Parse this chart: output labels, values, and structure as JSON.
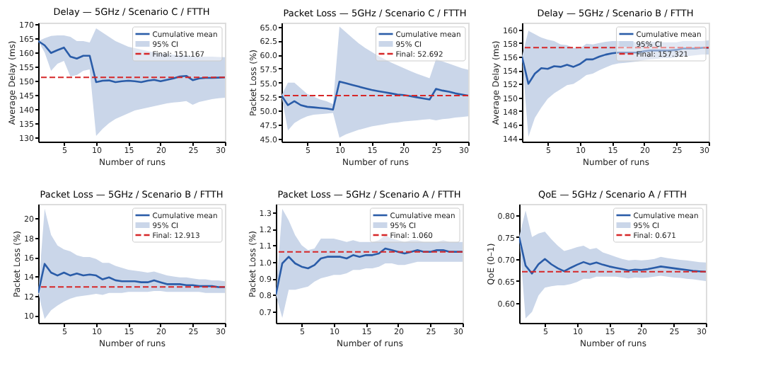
{
  "chart_data": [
    {
      "type": "line",
      "title": "Delay — 5GHz / Scenario C / FTTH",
      "xlabel": "Number of runs",
      "ylabel": "Average Delay (ms)",
      "x": [
        1,
        2,
        3,
        4,
        5,
        6,
        7,
        8,
        9,
        10,
        11,
        12,
        13,
        14,
        15,
        16,
        17,
        18,
        19,
        20,
        21,
        22,
        23,
        24,
        25,
        26,
        27,
        28,
        29,
        30
      ],
      "xlim": [
        1,
        30
      ],
      "xticks": [
        5,
        10,
        15,
        20,
        25,
        30
      ],
      "ylim": [
        128.5,
        170.5
      ],
      "yticks": [
        130,
        135,
        140,
        145,
        150,
        155,
        160,
        165,
        170
      ],
      "grid": false,
      "legend": "top right",
      "annotations": [
        "95% CI"
      ],
      "series": [
        {
          "name": "Cumulative mean",
          "color": "#2a5ca8",
          "line_style": "solid",
          "values": [
            164,
            162.5,
            159.8,
            160.8,
            161.7,
            158.5,
            157.8,
            158.8,
            158.8,
            149.5,
            150,
            150.1,
            149.5,
            149.8,
            150,
            149.8,
            149.5,
            150,
            150.3,
            149.8,
            150.3,
            150.8,
            151.5,
            151.7,
            150.2,
            150.8,
            151,
            151,
            151.1,
            151.2
          ],
          "lower": [
            164,
            160,
            153.5,
            156,
            157,
            151.5,
            152,
            153.5,
            154,
            130.5,
            133,
            135,
            136.5,
            137.5,
            138.5,
            139.5,
            140,
            140.5,
            141,
            141.5,
            142,
            142.3,
            142.5,
            142.8,
            141.5,
            142.5,
            143,
            143.5,
            143.8,
            144
          ],
          "upper": [
            164,
            165,
            165.8,
            166,
            166,
            165.5,
            164,
            164,
            163.5,
            168.5,
            167,
            165.5,
            164,
            163,
            162,
            161.5,
            161,
            160.5,
            160,
            159.5,
            159.5,
            159.2,
            159,
            159,
            158.5,
            158.5,
            158.5,
            158.5,
            158.4,
            158.3
          ]
        }
      ],
      "ref_lines": [
        {
          "axis": "y",
          "value": 151.167,
          "label": "Final: 151.167",
          "color": "#d62728",
          "line_style": "dashed"
        }
      ]
    },
    {
      "type": "line",
      "title": "Packet Loss — 5GHz / Scenario C / FTTH",
      "xlabel": "Number of runs",
      "ylabel": "Packet Loss (%)",
      "x": [
        1,
        2,
        3,
        4,
        5,
        6,
        7,
        8,
        9,
        10,
        11,
        12,
        13,
        14,
        15,
        16,
        17,
        18,
        19,
        20,
        21,
        22,
        23,
        24,
        25,
        26,
        27,
        28,
        29,
        30
      ],
      "xlim": [
        1,
        30
      ],
      "xticks": [
        5,
        10,
        15,
        20,
        25,
        30
      ],
      "ylim": [
        44.5,
        65.7
      ],
      "yticks": [
        {
          "value": 45,
          "label": "45.0"
        },
        47.5,
        {
          "value": 50,
          "label": "50.0"
        },
        52.5,
        {
          "value": 55,
          "label": "55.0"
        },
        57.5,
        {
          "value": 60,
          "label": "60.0"
        },
        62.5,
        {
          "value": 65,
          "label": "65.0"
        }
      ],
      "grid": false,
      "legend": "top right",
      "annotations": [
        "95% CI"
      ],
      "series": [
        {
          "name": "Cumulative mean",
          "color": "#2a5ca8",
          "line_style": "solid",
          "values": [
            52.7,
            51,
            51.7,
            51,
            50.7,
            50.6,
            50.5,
            50.4,
            50.2,
            55.2,
            54.9,
            54.6,
            54.3,
            54,
            53.7,
            53.5,
            53.3,
            53.1,
            52.9,
            52.8,
            52.6,
            52.4,
            52.2,
            52,
            53.9,
            53.6,
            53.4,
            53.1,
            52.9,
            52.7
          ],
          "lower": [
            52.7,
            46.5,
            47.8,
            48.5,
            49,
            49.3,
            49.4,
            49.5,
            49.6,
            45.2,
            45.8,
            46.2,
            46.6,
            46.9,
            47.2,
            47.4,
            47.6,
            47.8,
            47.9,
            48.1,
            48.2,
            48.3,
            48.4,
            48.5,
            48.3,
            48.5,
            48.6,
            48.8,
            48.9,
            49
          ],
          "upper": [
            52.7,
            55,
            55,
            54,
            53,
            52.5,
            52,
            51.7,
            51.2,
            65,
            64,
            63,
            62,
            61.2,
            60.5,
            59.8,
            59.2,
            58.6,
            58.1,
            57.6,
            57.1,
            56.6,
            56.2,
            55.8,
            59.2,
            58.8,
            58.4,
            58,
            57.6,
            57.3
          ]
        }
      ],
      "ref_lines": [
        {
          "axis": "y",
          "value": 52.692,
          "label": "Final: 52.692",
          "color": "#d62728",
          "line_style": "dashed"
        }
      ]
    },
    {
      "type": "line",
      "title": "Delay — 5GHz / Scenario B / FTTH",
      "xlabel": "Number of runs",
      "ylabel": "Average Delay (ms)",
      "x": [
        1,
        2,
        3,
        4,
        5,
        6,
        7,
        8,
        9,
        10,
        11,
        12,
        13,
        14,
        15,
        16,
        17,
        18,
        19,
        20,
        21,
        22,
        23,
        24,
        25,
        26,
        27,
        28,
        29,
        30
      ],
      "xlim": [
        1,
        30
      ],
      "xticks": [
        5,
        10,
        15,
        20,
        25,
        30
      ],
      "ylim": [
        143.5,
        161
      ],
      "yticks": [
        144,
        146,
        148,
        150,
        152,
        154,
        156,
        158,
        160
      ],
      "grid": false,
      "legend": "top right",
      "annotations": [
        "95% CI"
      ],
      "series": [
        {
          "name": "Cumulative mean",
          "color": "#2a5ca8",
          "line_style": "solid",
          "values": [
            156,
            152,
            153.5,
            154.3,
            154.2,
            154.6,
            154.5,
            154.8,
            154.5,
            154.9,
            155.6,
            155.6,
            156,
            156.3,
            156.5,
            156.6,
            156.6,
            156.6,
            156.6,
            156.8,
            156.9,
            156.9,
            156.9,
            156.9,
            157,
            157.2,
            157.2,
            157.2,
            157.3,
            157.3
          ],
          "lower": [
            156,
            144.2,
            147,
            148.5,
            149.8,
            150.6,
            151.2,
            151.8,
            152,
            152.6,
            153.3,
            153.5,
            154,
            154.4,
            154.8,
            155,
            155.1,
            155.2,
            155.3,
            155.5,
            155.6,
            155.7,
            155.8,
            155.8,
            155.9,
            156.1,
            156.1,
            156.2,
            156.3,
            156.3
          ],
          "upper": [
            156,
            159.8,
            159.3,
            158.8,
            158.5,
            158.3,
            157.8,
            157.7,
            157.3,
            157.2,
            157.9,
            157.8,
            158,
            158.2,
            158.3,
            158.3,
            158.3,
            158.2,
            158.1,
            158.2,
            158.2,
            158.2,
            158.1,
            158.1,
            158.1,
            158.3,
            158.3,
            158.3,
            158.3,
            158.4
          ]
        }
      ],
      "ref_lines": [
        {
          "axis": "y",
          "value": 157.321,
          "label": "Final: 157.321",
          "color": "#d62728",
          "line_style": "dashed"
        }
      ]
    },
    {
      "type": "line",
      "title": "Packet Loss — 5GHz / Scenario B / FTTH",
      "xlabel": "Number of runs",
      "ylabel": "Packet Loss (%)",
      "x": [
        1,
        2,
        3,
        4,
        5,
        6,
        7,
        8,
        9,
        10,
        11,
        12,
        13,
        14,
        15,
        16,
        17,
        18,
        19,
        20,
        21,
        22,
        23,
        24,
        25,
        26,
        27,
        28,
        29,
        30
      ],
      "xlim": [
        1,
        30
      ],
      "xticks": [
        5,
        10,
        15,
        20,
        25,
        30
      ],
      "ylim": [
        9.2,
        21.5
      ],
      "yticks": [
        10,
        12,
        14,
        16,
        18,
        20
      ],
      "grid": false,
      "legend": "top right",
      "annotations": [
        "95% CI"
      ],
      "series": [
        {
          "name": "Cumulative mean",
          "color": "#2a5ca8",
          "line_style": "solid",
          "values": [
            12.3,
            15.3,
            14.4,
            14.1,
            14.4,
            14.1,
            14.3,
            14.1,
            14.2,
            14.1,
            13.7,
            13.9,
            13.6,
            13.5,
            13.5,
            13.5,
            13.4,
            13.4,
            13.6,
            13.4,
            13.2,
            13.2,
            13.2,
            13.1,
            13.1,
            13,
            13,
            13,
            12.9,
            12.9
          ],
          "lower": [
            12.3,
            9.6,
            10.5,
            11,
            11.4,
            11.7,
            11.9,
            12,
            12.1,
            12.2,
            12.1,
            12.3,
            12.3,
            12.3,
            12.4,
            12.4,
            12.4,
            12.4,
            12.5,
            12.5,
            12.4,
            12.4,
            12.4,
            12.4,
            12.4,
            12.4,
            12.3,
            12.3,
            12.3,
            12.3
          ],
          "upper": [
            12.3,
            21,
            18.3,
            17.2,
            16.8,
            16.6,
            16.2,
            16,
            16,
            15.8,
            15.4,
            15.4,
            15.1,
            14.9,
            14.7,
            14.6,
            14.5,
            14.4,
            14.5,
            14.3,
            14.1,
            14,
            13.9,
            13.9,
            13.8,
            13.7,
            13.7,
            13.6,
            13.6,
            13.5
          ]
        }
      ],
      "ref_lines": [
        {
          "axis": "y",
          "value": 12.913,
          "label": "Final: 12.913",
          "color": "#d62728",
          "line_style": "dashed"
        }
      ]
    },
    {
      "type": "line",
      "title": "Packet Loss — 5GHz / Scenario A / FTTH",
      "xlabel": "Number of runs",
      "ylabel": "Packet Loss (%)",
      "x": [
        1,
        2,
        3,
        4,
        5,
        6,
        7,
        8,
        9,
        10,
        11,
        12,
        13,
        14,
        15,
        16,
        17,
        18,
        19,
        20,
        21,
        22,
        23,
        24,
        25,
        26,
        27,
        28,
        29,
        30
      ],
      "xlim": [
        1,
        30
      ],
      "xticks": [
        5,
        10,
        15,
        20,
        25,
        30
      ],
      "ylim": [
        0.63,
        1.35
      ],
      "yticks": [
        0.7,
        0.8,
        0.9,
        {
          "value": 1,
          "label": "1.0"
        },
        1.1,
        1.2,
        1.3
      ],
      "grid": false,
      "legend": "top right",
      "annotations": [
        "95% CI"
      ],
      "series": [
        {
          "name": "Cumulative mean",
          "color": "#2a5ca8",
          "line_style": "solid",
          "values": [
            0.8,
            0.99,
            1.03,
            0.99,
            0.97,
            0.96,
            0.98,
            1.02,
            1.03,
            1.03,
            1.03,
            1.02,
            1.04,
            1.03,
            1.04,
            1.04,
            1.05,
            1.08,
            1.07,
            1.06,
            1.05,
            1.06,
            1.07,
            1.06,
            1.06,
            1.07,
            1.07,
            1.06,
            1.06,
            1.06
          ],
          "lower": [
            0.8,
            0.66,
            0.83,
            0.83,
            0.84,
            0.85,
            0.88,
            0.9,
            0.91,
            0.92,
            0.92,
            0.93,
            0.95,
            0.95,
            0.96,
            0.96,
            0.97,
            0.99,
            0.99,
            0.98,
            0.98,
            0.99,
            1,
            1,
            1,
            1,
            1,
            1,
            1,
            1
          ],
          "upper": [
            0.8,
            1.32,
            1.25,
            1.16,
            1.1,
            1.07,
            1.08,
            1.14,
            1.14,
            1.14,
            1.13,
            1.12,
            1.13,
            1.12,
            1.12,
            1.12,
            1.13,
            1.16,
            1.14,
            1.13,
            1.12,
            1.13,
            1.13,
            1.12,
            1.12,
            1.12,
            1.13,
            1.12,
            1.12,
            1.12
          ]
        }
      ],
      "ref_lines": [
        {
          "axis": "y",
          "value": 1.06,
          "label": "Final: 1.060",
          "color": "#d62728",
          "line_style": "dashed"
        }
      ]
    },
    {
      "type": "line",
      "title": "QoE — 5GHz / Scenario A / FTTH",
      "xlabel": "Number of runs",
      "ylabel": "QoE (0–1)",
      "x": [
        1,
        2,
        3,
        4,
        5,
        6,
        7,
        8,
        9,
        10,
        11,
        12,
        13,
        14,
        15,
        16,
        17,
        18,
        19,
        20,
        21,
        22,
        23,
        24,
        25,
        26,
        27,
        28,
        29,
        30
      ],
      "xlim": [
        1,
        30
      ],
      "xticks": [
        5,
        10,
        15,
        20,
        25,
        30
      ],
      "ylim": [
        0.555,
        0.825
      ],
      "yticks": [
        {
          "value": 0.6,
          "label": "0.60"
        },
        0.65,
        {
          "value": 0.7,
          "label": "0.70"
        },
        0.75,
        {
          "value": 0.8,
          "label": "0.80"
        }
      ],
      "grid": false,
      "legend": "top right",
      "annotations": [
        "95% CI"
      ],
      "series": [
        {
          "name": "Cumulative mean",
          "color": "#2a5ca8",
          "line_style": "solid",
          "values": [
            0.75,
            0.685,
            0.667,
            0.688,
            0.7,
            0.688,
            0.679,
            0.672,
            0.68,
            0.687,
            0.693,
            0.688,
            0.692,
            0.687,
            0.683,
            0.68,
            0.677,
            0.674,
            0.676,
            0.675,
            0.677,
            0.68,
            0.683,
            0.681,
            0.679,
            0.677,
            0.675,
            0.673,
            0.672,
            0.671
          ],
          "lower": [
            0.75,
            0.565,
            0.58,
            0.617,
            0.635,
            0.638,
            0.64,
            0.64,
            0.643,
            0.648,
            0.655,
            0.655,
            0.66,
            0.66,
            0.66,
            0.66,
            0.658,
            0.656,
            0.658,
            0.657,
            0.658,
            0.66,
            0.662,
            0.66,
            0.658,
            0.657,
            0.655,
            0.654,
            0.652,
            0.65
          ],
          "upper": [
            0.75,
            0.81,
            0.75,
            0.758,
            0.762,
            0.745,
            0.73,
            0.718,
            0.722,
            0.727,
            0.73,
            0.722,
            0.725,
            0.715,
            0.71,
            0.705,
            0.7,
            0.697,
            0.698,
            0.697,
            0.698,
            0.7,
            0.705,
            0.702,
            0.7,
            0.698,
            0.697,
            0.695,
            0.693,
            0.692
          ]
        }
      ],
      "ref_lines": [
        {
          "axis": "y",
          "value": 0.671,
          "label": "Final: 0.671",
          "color": "#d62728",
          "line_style": "dashed"
        }
      ]
    }
  ]
}
